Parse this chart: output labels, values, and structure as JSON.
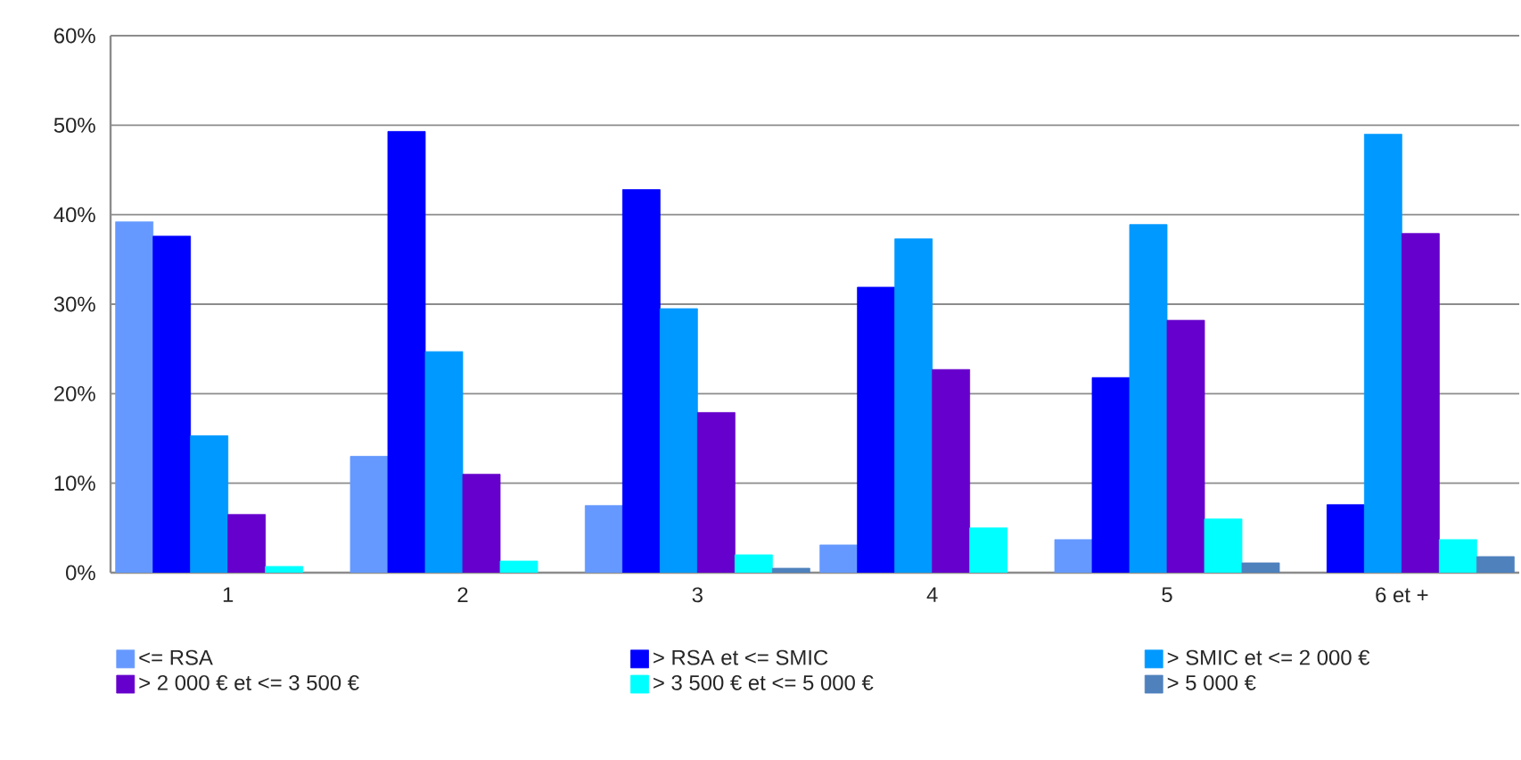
{
  "chart_data": {
    "type": "bar",
    "categories": [
      "1",
      "2",
      "3",
      "4",
      "5",
      "6 et +"
    ],
    "series": [
      {
        "name": "<= RSA",
        "color": "#6699ff",
        "values": [
          39.2,
          13.0,
          7.5,
          3.1,
          3.7,
          null
        ]
      },
      {
        "name": "> RSA et <= SMIC",
        "color": "#0000ff",
        "values": [
          37.6,
          49.3,
          42.8,
          31.9,
          21.8,
          7.6
        ]
      },
      {
        "name": "> SMIC et <= 2 000 €",
        "color": "#0099ff",
        "values": [
          15.3,
          24.7,
          29.5,
          37.3,
          38.9,
          49.0
        ]
      },
      {
        "name": "> 2 000 € et <= 3 500 €",
        "color": "#6600cc",
        "values": [
          6.5,
          11.0,
          17.9,
          22.7,
          28.2,
          37.9
        ]
      },
      {
        "name": "> 3 500 € et <= 5 000 €",
        "color": "#00ffff",
        "values": [
          0.7,
          1.3,
          2.0,
          5.0,
          6.0,
          3.7
        ]
      },
      {
        "name": "> 5 000 €",
        "color": "#4f81bd",
        "values": [
          null,
          null,
          0.5,
          null,
          1.1,
          1.8
        ]
      }
    ],
    "ylim": [
      0,
      60
    ],
    "yticks": [
      {
        "value": 0,
        "label": "0%"
      },
      {
        "value": 10,
        "label": "10%"
      },
      {
        "value": 20,
        "label": "20%"
      },
      {
        "value": 30,
        "label": "30%"
      },
      {
        "value": 40,
        "label": "40%"
      },
      {
        "value": 50,
        "label": "50%"
      },
      {
        "value": 60,
        "label": "60%"
      }
    ],
    "grid": "y",
    "legend": "bottom"
  }
}
